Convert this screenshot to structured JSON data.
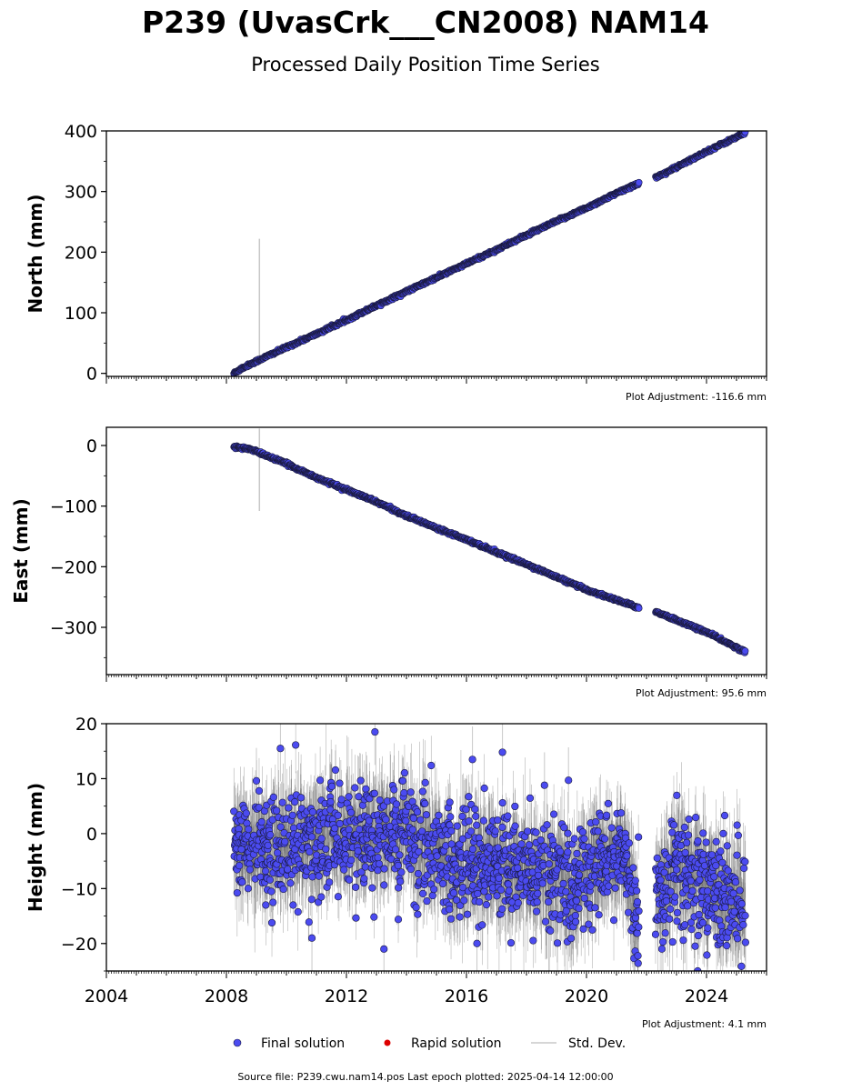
{
  "header": {
    "title": "P239 (UvasCrk___CN2008) NAM14",
    "subtitle": "Processed Daily Position Time Series"
  },
  "legend": {
    "final": "Final solution",
    "rapid": "Rapid solution",
    "std": "Std. Dev."
  },
  "footer": {
    "source": "Source file: P239.cwu.nam14.pos  Last epoch plotted: 2025-04-14 12:00:00"
  },
  "colors": {
    "final_fill": "#4b4bf0",
    "final_edge": "#1a1a40",
    "rapid": "#dd0000",
    "std_dev": "#c8c8c8",
    "std_dev_dense": "#555555"
  },
  "chart_data": [
    {
      "type": "scatter",
      "panel": "north",
      "ylabel": "North (mm)",
      "adjustment": "Plot Adjustment: -116.6 mm",
      "xlim": [
        2004.0,
        2026.0
      ],
      "ylim": [
        -5,
        400
      ],
      "yticks": [
        0,
        100,
        200,
        300,
        400
      ],
      "ytick_labels": [
        "0",
        "100",
        "200",
        "300",
        "400"
      ],
      "gaps": [
        [
          2021.75,
          2022.3
        ]
      ],
      "series": [
        {
          "x": [
            2008.25,
            2008.5,
            2009.0,
            2010.0,
            2011.0,
            2012.0,
            2013.0,
            2014.0,
            2015.0,
            2016.0,
            2017.0,
            2018.0,
            2019.0,
            2020.0,
            2021.0,
            2021.7,
            2022.35,
            2023.0,
            2024.0,
            2025.3
          ],
          "values": [
            0,
            8,
            20,
            43,
            65,
            88,
            112,
            135,
            158,
            181,
            204,
            228,
            251,
            273,
            297,
            313,
            324,
            340,
            366,
            397
          ]
        }
      ],
      "std_spikes": [
        {
          "x": 2009.1,
          "low": 15,
          "high": 222
        }
      ]
    },
    {
      "type": "scatter",
      "panel": "east",
      "ylabel": "East (mm)",
      "adjustment": "Plot Adjustment: 95.6 mm",
      "xlim": [
        2004.0,
        2026.0
      ],
      "ylim": [
        -378,
        30
      ],
      "yticks": [
        0,
        -100,
        -200,
        -300
      ],
      "ytick_labels": [
        "0",
        "−100",
        "−200",
        "−300"
      ],
      "gaps": [
        [
          2021.75,
          2022.3
        ]
      ],
      "series": [
        {
          "x": [
            2008.25,
            2008.7,
            2009.0,
            2010.0,
            2011.0,
            2012.0,
            2013.0,
            2014.0,
            2015.0,
            2016.0,
            2017.0,
            2018.0,
            2019.0,
            2020.0,
            2021.0,
            2021.7,
            2022.35,
            2023.0,
            2024.0,
            2025.3
          ],
          "values": [
            -2,
            -5,
            -10,
            -30,
            -53,
            -73,
            -93,
            -116,
            -136,
            -155,
            -176,
            -196,
            -217,
            -238,
            -255,
            -267,
            -275,
            -288,
            -308,
            -341
          ]
        }
      ],
      "std_spikes": [
        {
          "x": 2009.1,
          "low": -108,
          "high": 28
        }
      ]
    },
    {
      "type": "scatter",
      "panel": "height",
      "ylabel": "Height (mm)",
      "adjustment": "Plot Adjustment: 4.1 mm",
      "xlim": [
        2004.0,
        2026.0
      ],
      "ylim": [
        -25,
        20
      ],
      "yticks": [
        20,
        10,
        0,
        -10,
        -20
      ],
      "ytick_labels": [
        "20",
        "10",
        "0",
        "−10",
        "−20"
      ],
      "xticks": [
        2004,
        2008,
        2012,
        2016,
        2020,
        2024
      ],
      "xtick_labels": [
        "2004",
        "2008",
        "2012",
        "2016",
        "2020",
        "2024"
      ],
      "gaps": [
        [
          2021.75,
          2022.3
        ]
      ],
      "trend": {
        "x": [
          2008.25,
          2010.0,
          2012.0,
          2014.0,
          2015.0,
          2016.0,
          2018.0,
          2019.5,
          2020.5,
          2021.3,
          2021.7,
          2022.35,
          2023.0,
          2024.0,
          2025.3
        ],
        "mean": [
          -2,
          -2,
          0,
          0,
          -5,
          -5,
          -7,
          -10,
          -4,
          -4,
          -16,
          -12,
          -7,
          -9,
          -13
        ],
        "spread": [
          4,
          5,
          5,
          5,
          5,
          5,
          5,
          5,
          4,
          4,
          5,
          5,
          5,
          5,
          5
        ]
      },
      "outliers": [
        {
          "x": 2009.0,
          "y": 9.6
        },
        {
          "x": 2009.8,
          "y": 15.5
        },
        {
          "x": 2012.95,
          "y": 18.5
        },
        {
          "x": 2013.25,
          "y": -21.0
        },
        {
          "x": 2010.85,
          "y": -19.0
        },
        {
          "x": 2016.2,
          "y": 13.5
        },
        {
          "x": 2017.2,
          "y": 14.8
        },
        {
          "x": 2018.6,
          "y": 8.8
        },
        {
          "x": 2019.4,
          "y": 9.7
        },
        {
          "x": 2016.35,
          "y": -20.0
        },
        {
          "x": 2025.3,
          "y": -19.8
        }
      ]
    }
  ]
}
